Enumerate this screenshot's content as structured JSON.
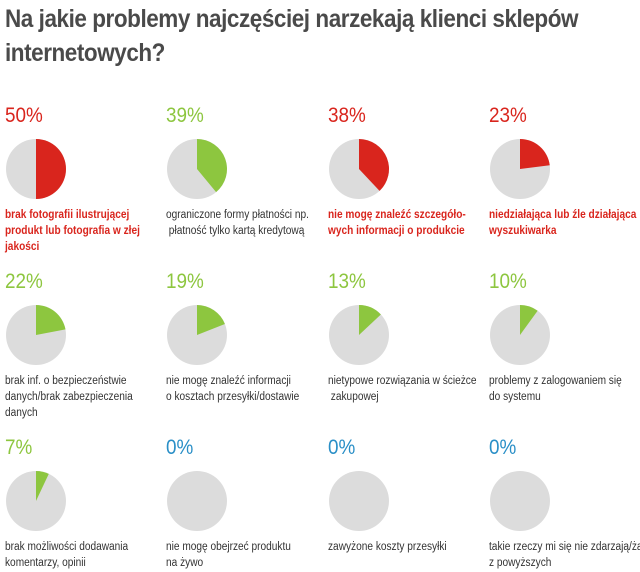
{
  "title": "Na jakie problemy najczęściej narzekają klienci sklepów internetowych?",
  "colors": {
    "red": "#d9251d",
    "green": "#8dc63f",
    "blue": "#2a8fc7",
    "gray": "#dcdcdc"
  },
  "chart_data": {
    "type": "pie",
    "title": "Na jakie problemy najczęściej narzekają klienci sklepów internetowych?",
    "items": [
      {
        "value": 50,
        "label_text": "50%",
        "color": "red",
        "bold": true,
        "lines": [
          "brak fotografii ilustrującej",
          "produkt lub fotografia w złej",
          "jakości"
        ]
      },
      {
        "value": 39,
        "label_text": "39%",
        "color": "green",
        "bold": false,
        "lines": [
          "ograniczone formy płatności np.",
          " płatność tylko kartą kredytową"
        ]
      },
      {
        "value": 38,
        "label_text": "38%",
        "color": "red",
        "bold": true,
        "lines": [
          "nie mogę znaleźć szczegóło-",
          "wych informacji o produkcie"
        ]
      },
      {
        "value": 23,
        "label_text": "23%",
        "color": "red",
        "bold": true,
        "lines": [
          "niedziałająca lub źle działająca",
          "wyszukiwarka"
        ]
      },
      {
        "value": 22,
        "label_text": "22%",
        "color": "green",
        "bold": false,
        "lines": [
          "brak inf. o bezpieczeństwie",
          "danych/brak zabezpieczenia",
          "danych"
        ]
      },
      {
        "value": 19,
        "label_text": "19%",
        "color": "green",
        "bold": false,
        "lines": [
          "nie mogę znaleźć informacji",
          "o kosztach przesyłki/dostawie"
        ]
      },
      {
        "value": 13,
        "label_text": "13%",
        "color": "green",
        "bold": false,
        "lines": [
          "nietypowe rozwiązania w ścieżce",
          " zakupowej"
        ]
      },
      {
        "value": 10,
        "label_text": "10%",
        "color": "green",
        "bold": false,
        "lines": [
          "problemy z zalogowaniem się",
          "do systemu"
        ]
      },
      {
        "value": 7,
        "label_text": "7%",
        "color": "green",
        "bold": false,
        "lines": [
          "brak możliwości dodawania",
          "komentarzy, opinii"
        ]
      },
      {
        "value": 0,
        "label_text": "0%",
        "color": "blue",
        "bold": false,
        "lines": [
          "nie mogę obejrzeć produktu",
          "na żywo"
        ]
      },
      {
        "value": 0,
        "label_text": "0%",
        "color": "blue",
        "bold": false,
        "lines": [
          "zawyżone koszty przesyłki"
        ]
      },
      {
        "value": 0,
        "label_text": "0%",
        "color": "blue",
        "bold": false,
        "lines": [
          "takie rzeczy mi się nie zdarzają/żadne",
          "z powyższych"
        ]
      }
    ]
  }
}
